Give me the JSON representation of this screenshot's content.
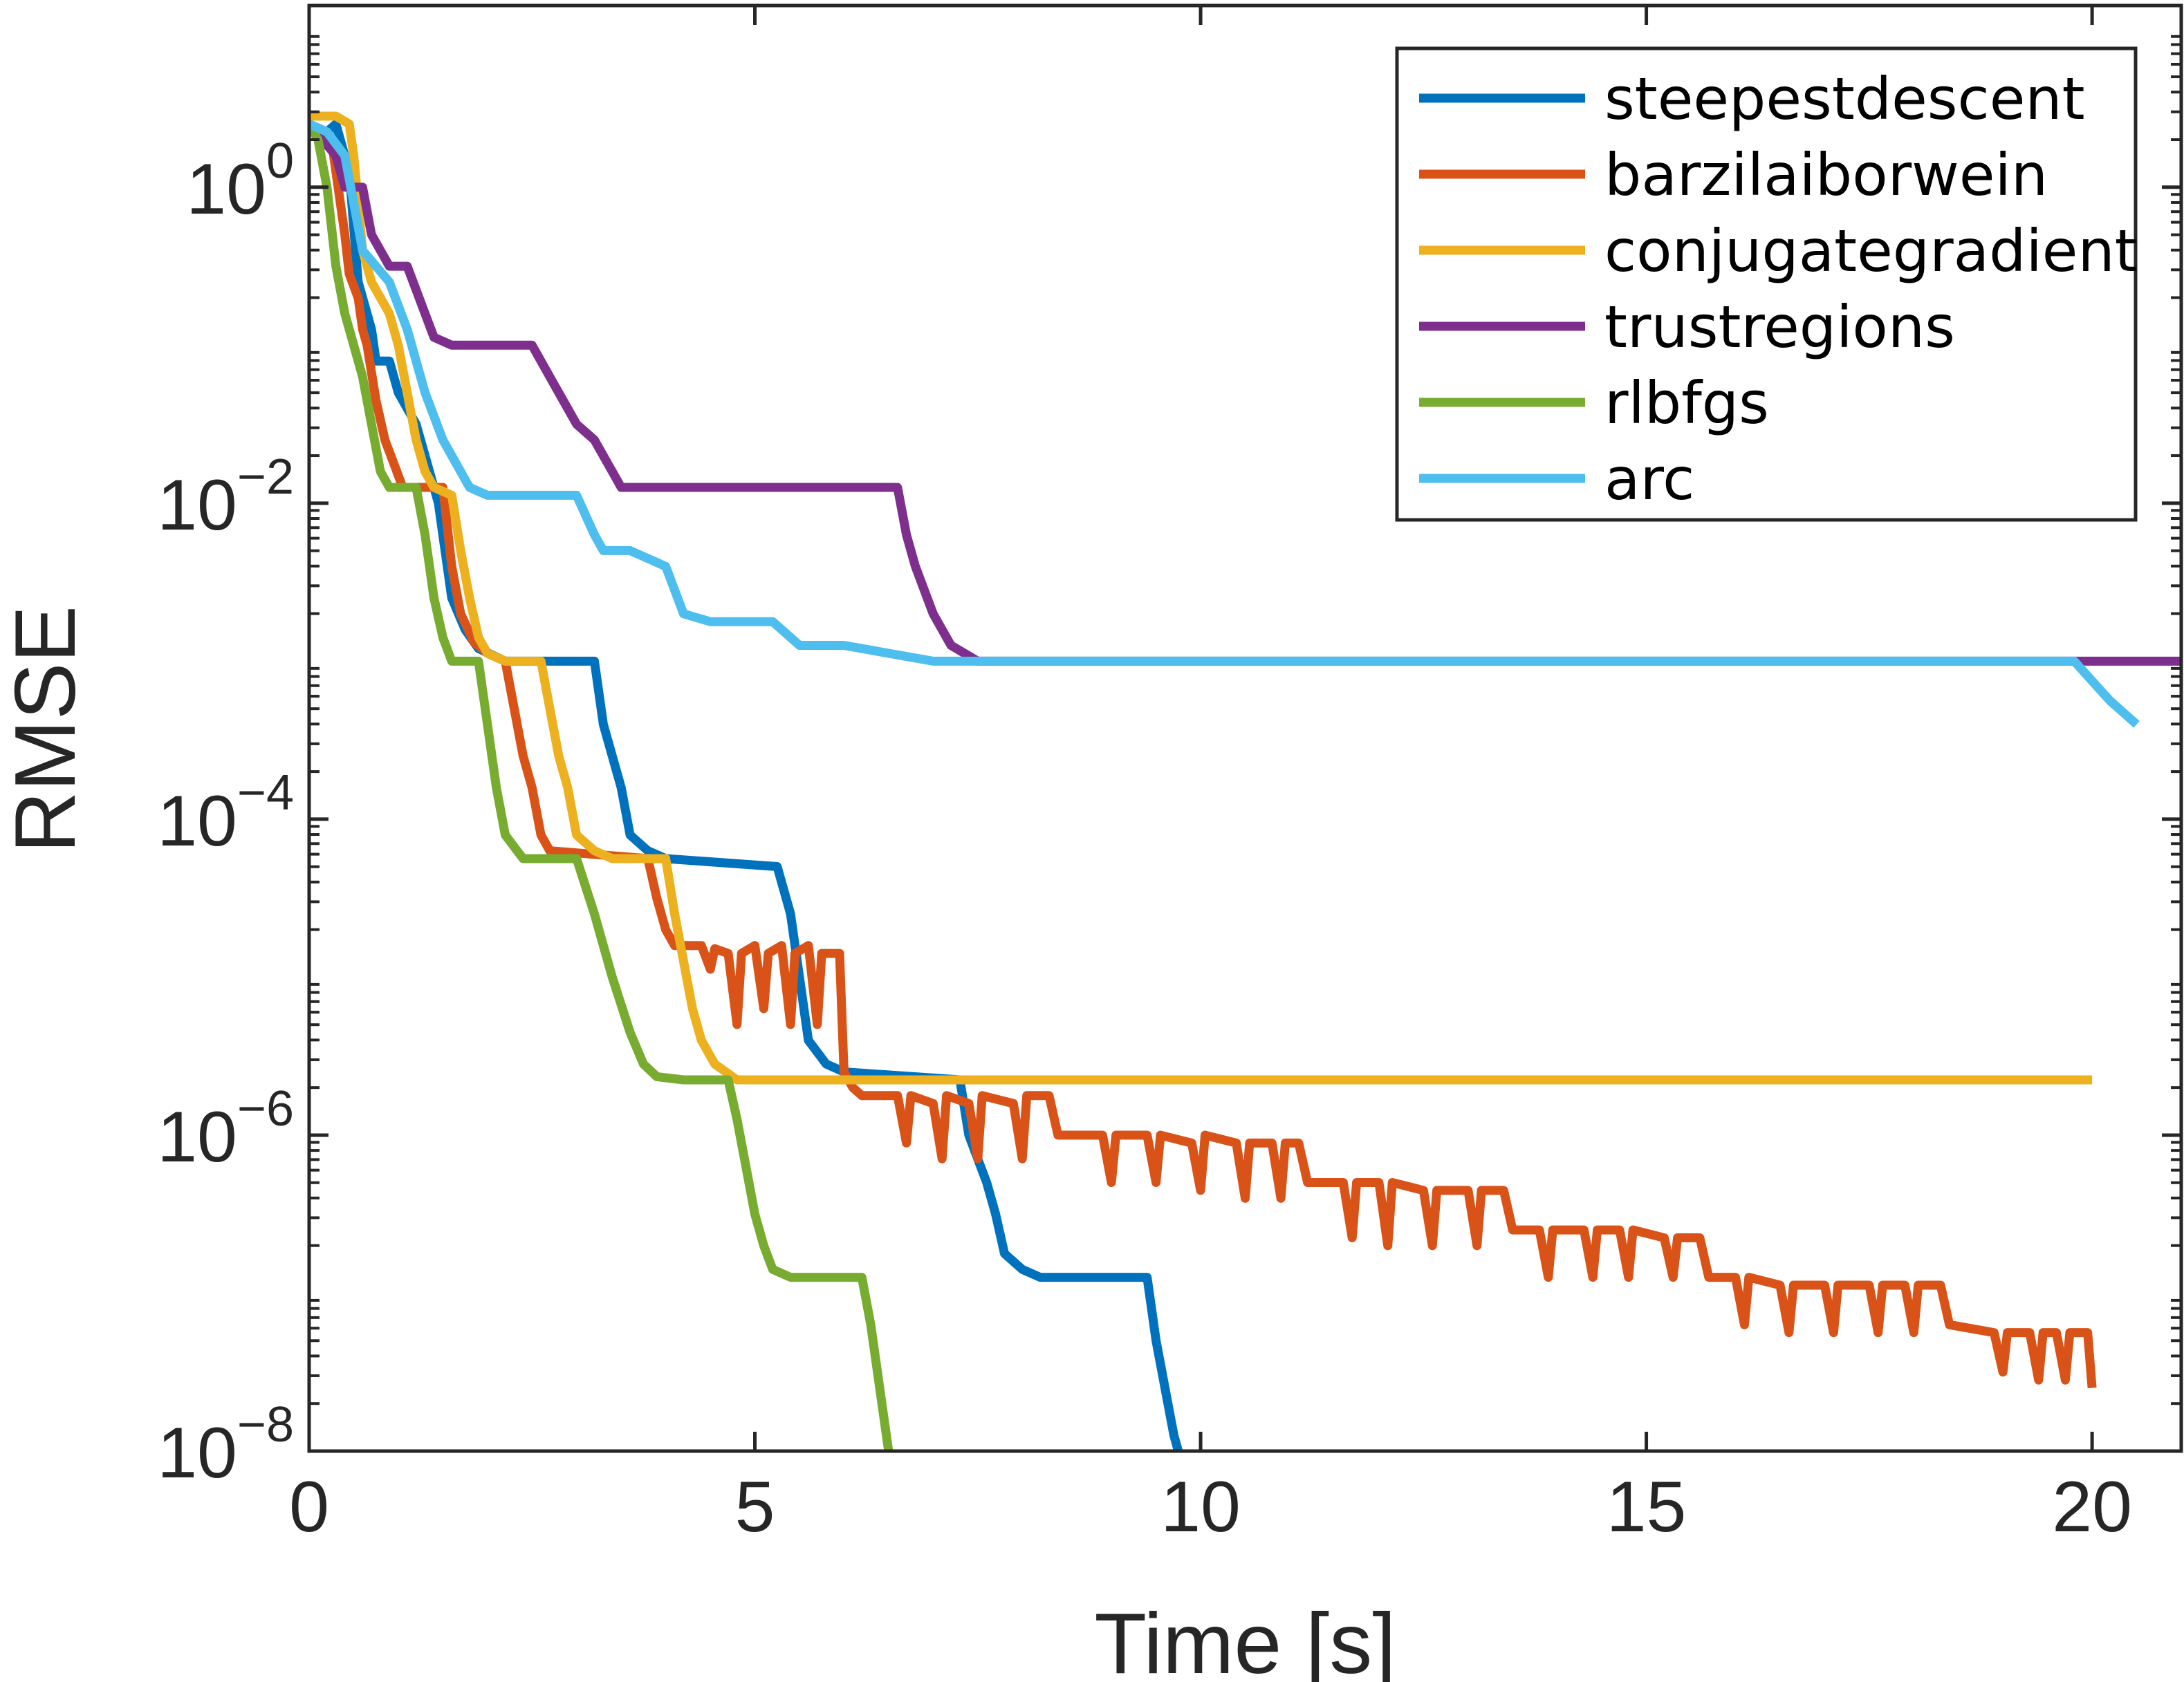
{
  "chart_data": {
    "type": "line",
    "title": "",
    "xlabel": "Time [s]",
    "ylabel": "RMSE",
    "xlim": [
      0,
      21
    ],
    "ylim_exponents": [
      -8,
      1.15
    ],
    "yscale": "log",
    "grid": false,
    "legend_position": "top-right",
    "box": true,
    "x_ticks": [
      {
        "value": 0,
        "label": "0"
      },
      {
        "value": 5,
        "label": "5"
      },
      {
        "value": 10,
        "label": "10"
      },
      {
        "value": 15,
        "label": "15"
      },
      {
        "value": 20,
        "label": "20"
      }
    ],
    "y_ticks": [
      {
        "exponent": 0,
        "base": "10",
        "exp_label": "0"
      },
      {
        "exponent": -2,
        "base": "10",
        "exp_label": "−2"
      },
      {
        "exponent": -4,
        "base": "10",
        "exp_label": "−4"
      },
      {
        "exponent": -6,
        "base": "10",
        "exp_label": "−6"
      },
      {
        "exponent": -8,
        "base": "10",
        "exp_label": "−8"
      }
    ],
    "series": [
      {
        "name": "steepestdescent",
        "color": "#0072BD",
        "points": [
          [
            0,
            0.4
          ],
          [
            0.2,
            0.35
          ],
          [
            0.3,
            0.4
          ],
          [
            0.45,
            0.1
          ],
          [
            0.55,
            -0.6
          ],
          [
            0.7,
            -0.9
          ],
          [
            0.75,
            -1.1
          ],
          [
            0.9,
            -1.1
          ],
          [
            1.0,
            -1.3
          ],
          [
            1.2,
            -1.5
          ],
          [
            1.3,
            -1.7
          ],
          [
            1.45,
            -2.0
          ],
          [
            1.6,
            -2.6
          ],
          [
            1.75,
            -2.8
          ],
          [
            1.9,
            -2.92
          ],
          [
            2.2,
            -3.0
          ],
          [
            3.2,
            -3.0
          ],
          [
            3.3,
            -3.4
          ],
          [
            3.4,
            -3.6
          ],
          [
            3.5,
            -3.8
          ],
          [
            3.6,
            -4.1
          ],
          [
            3.8,
            -4.2
          ],
          [
            4.0,
            -4.25
          ],
          [
            5.25,
            -4.3
          ],
          [
            5.4,
            -4.6
          ],
          [
            5.5,
            -5.0
          ],
          [
            5.6,
            -5.4
          ],
          [
            5.8,
            -5.55
          ],
          [
            6.0,
            -5.6
          ],
          [
            7.3,
            -5.65
          ],
          [
            7.4,
            -6.0
          ],
          [
            7.6,
            -6.3
          ],
          [
            7.7,
            -6.5
          ],
          [
            7.8,
            -6.75
          ],
          [
            8.0,
            -6.85
          ],
          [
            8.2,
            -6.9
          ],
          [
            9.4,
            -6.9
          ],
          [
            9.5,
            -7.3
          ],
          [
            9.6,
            -7.6
          ],
          [
            9.7,
            -7.9
          ],
          [
            9.75,
            -8.0
          ]
        ]
      },
      {
        "name": "barzilaiborwein",
        "color": "#D95319",
        "points": [
          [
            0,
            0.4
          ],
          [
            0.25,
            0.3
          ],
          [
            0.4,
            -0.3
          ],
          [
            0.45,
            -0.55
          ],
          [
            0.55,
            -0.7
          ],
          [
            0.6,
            -0.9
          ],
          [
            0.65,
            -1.0
          ],
          [
            0.75,
            -1.35
          ],
          [
            0.85,
            -1.6
          ],
          [
            0.95,
            -1.75
          ],
          [
            1.05,
            -1.9
          ],
          [
            1.5,
            -1.9
          ],
          [
            1.55,
            -2.15
          ],
          [
            1.6,
            -2.4
          ],
          [
            1.7,
            -2.7
          ],
          [
            1.85,
            -2.88
          ],
          [
            2.0,
            -2.95
          ],
          [
            2.2,
            -3.0
          ],
          [
            2.3,
            -3.3
          ],
          [
            2.4,
            -3.6
          ],
          [
            2.5,
            -3.8
          ],
          [
            2.6,
            -4.1
          ],
          [
            2.7,
            -4.2
          ],
          [
            3.8,
            -4.25
          ],
          [
            3.9,
            -4.5
          ],
          [
            4.0,
            -4.7
          ],
          [
            4.1,
            -4.8
          ],
          [
            4.4,
            -4.8
          ],
          [
            4.5,
            -4.95
          ],
          [
            4.55,
            -4.82
          ],
          [
            4.7,
            -4.85
          ],
          [
            4.8,
            -5.3
          ],
          [
            4.85,
            -4.85
          ],
          [
            5.0,
            -4.8
          ],
          [
            5.1,
            -5.2
          ],
          [
            5.15,
            -4.85
          ],
          [
            5.3,
            -4.8
          ],
          [
            5.4,
            -5.3
          ],
          [
            5.45,
            -4.85
          ],
          [
            5.6,
            -4.8
          ],
          [
            5.7,
            -5.3
          ],
          [
            5.75,
            -4.85
          ],
          [
            5.95,
            -4.85
          ],
          [
            6.0,
            -5.6
          ],
          [
            6.1,
            -5.7
          ],
          [
            6.2,
            -5.75
          ],
          [
            6.6,
            -5.75
          ],
          [
            6.7,
            -6.05
          ],
          [
            6.75,
            -5.75
          ],
          [
            7.0,
            -5.8
          ],
          [
            7.1,
            -6.15
          ],
          [
            7.15,
            -5.75
          ],
          [
            7.4,
            -5.8
          ],
          [
            7.5,
            -6.15
          ],
          [
            7.55,
            -5.75
          ],
          [
            7.9,
            -5.8
          ],
          [
            8.0,
            -6.15
          ],
          [
            8.05,
            -5.75
          ],
          [
            8.3,
            -5.75
          ],
          [
            8.4,
            -6.0
          ],
          [
            8.6,
            -6.0
          ],
          [
            8.9,
            -6.0
          ],
          [
            9.0,
            -6.3
          ],
          [
            9.05,
            -6.0
          ],
          [
            9.4,
            -6.0
          ],
          [
            9.5,
            -6.3
          ],
          [
            9.55,
            -6.0
          ],
          [
            9.9,
            -6.05
          ],
          [
            10.0,
            -6.35
          ],
          [
            10.05,
            -6.0
          ],
          [
            10.4,
            -6.05
          ],
          [
            10.5,
            -6.4
          ],
          [
            10.55,
            -6.05
          ],
          [
            10.8,
            -6.05
          ],
          [
            10.9,
            -6.4
          ],
          [
            10.95,
            -6.05
          ],
          [
            11.1,
            -6.05
          ],
          [
            11.2,
            -6.3
          ],
          [
            11.6,
            -6.3
          ],
          [
            11.7,
            -6.65
          ],
          [
            11.75,
            -6.3
          ],
          [
            12.0,
            -6.3
          ],
          [
            12.1,
            -6.7
          ],
          [
            12.15,
            -6.3
          ],
          [
            12.5,
            -6.35
          ],
          [
            12.6,
            -6.7
          ],
          [
            12.65,
            -6.35
          ],
          [
            13.0,
            -6.35
          ],
          [
            13.1,
            -6.7
          ],
          [
            13.15,
            -6.35
          ],
          [
            13.4,
            -6.35
          ],
          [
            13.5,
            -6.6
          ],
          [
            13.8,
            -6.6
          ],
          [
            13.9,
            -6.9
          ],
          [
            13.95,
            -6.6
          ],
          [
            14.3,
            -6.6
          ],
          [
            14.4,
            -6.9
          ],
          [
            14.45,
            -6.6
          ],
          [
            14.7,
            -6.6
          ],
          [
            14.8,
            -6.9
          ],
          [
            14.85,
            -6.6
          ],
          [
            15.2,
            -6.65
          ],
          [
            15.3,
            -6.9
          ],
          [
            15.35,
            -6.65
          ],
          [
            15.6,
            -6.65
          ],
          [
            15.7,
            -6.9
          ],
          [
            16.0,
            -6.9
          ],
          [
            16.1,
            -7.2
          ],
          [
            16.15,
            -6.9
          ],
          [
            16.5,
            -6.95
          ],
          [
            16.6,
            -7.25
          ],
          [
            16.65,
            -6.95
          ],
          [
            17.0,
            -6.95
          ],
          [
            17.1,
            -7.25
          ],
          [
            17.15,
            -6.95
          ],
          [
            17.5,
            -6.95
          ],
          [
            17.6,
            -7.25
          ],
          [
            17.65,
            -6.95
          ],
          [
            17.9,
            -6.95
          ],
          [
            18.0,
            -7.25
          ],
          [
            18.05,
            -6.95
          ],
          [
            18.3,
            -6.95
          ],
          [
            18.4,
            -7.2
          ],
          [
            18.9,
            -7.25
          ],
          [
            19.0,
            -7.5
          ],
          [
            19.05,
            -7.25
          ],
          [
            19.3,
            -7.25
          ],
          [
            19.4,
            -7.55
          ],
          [
            19.45,
            -7.25
          ],
          [
            19.6,
            -7.25
          ],
          [
            19.7,
            -7.55
          ],
          [
            19.75,
            -7.25
          ],
          [
            19.95,
            -7.25
          ],
          [
            20.0,
            -7.6
          ]
        ]
      },
      {
        "name": "conjugategradient",
        "color": "#EDB120",
        "points": [
          [
            0,
            0.45
          ],
          [
            0.3,
            0.45
          ],
          [
            0.45,
            0.4
          ],
          [
            0.5,
            0.2
          ],
          [
            0.6,
            -0.4
          ],
          [
            0.7,
            -0.6
          ],
          [
            0.8,
            -0.7
          ],
          [
            0.9,
            -0.8
          ],
          [
            1.0,
            -1.0
          ],
          [
            1.1,
            -1.3
          ],
          [
            1.2,
            -1.6
          ],
          [
            1.3,
            -1.8
          ],
          [
            1.4,
            -1.9
          ],
          [
            1.6,
            -1.95
          ],
          [
            1.7,
            -2.3
          ],
          [
            1.8,
            -2.6
          ],
          [
            1.9,
            -2.85
          ],
          [
            2.0,
            -2.95
          ],
          [
            2.2,
            -3.0
          ],
          [
            2.6,
            -3.0
          ],
          [
            2.7,
            -3.3
          ],
          [
            2.8,
            -3.6
          ],
          [
            2.9,
            -3.8
          ],
          [
            3.0,
            -4.1
          ],
          [
            3.2,
            -4.2
          ],
          [
            3.4,
            -4.25
          ],
          [
            4.0,
            -4.25
          ],
          [
            4.1,
            -4.6
          ],
          [
            4.2,
            -4.9
          ],
          [
            4.3,
            -5.2
          ],
          [
            4.4,
            -5.4
          ],
          [
            4.55,
            -5.55
          ],
          [
            4.8,
            -5.65
          ],
          [
            20.0,
            -5.65
          ]
        ]
      },
      {
        "name": "trustregions",
        "color": "#7E2F8E",
        "points": [
          [
            0,
            0.4
          ],
          [
            0.3,
            0.2
          ],
          [
            0.4,
            0.0
          ],
          [
            0.6,
            0.0
          ],
          [
            0.7,
            -0.3
          ],
          [
            0.9,
            -0.5
          ],
          [
            1.1,
            -0.5
          ],
          [
            1.2,
            -0.65
          ],
          [
            1.4,
            -0.95
          ],
          [
            1.6,
            -1.0
          ],
          [
            2.5,
            -1.0
          ],
          [
            2.7,
            -1.2
          ],
          [
            2.8,
            -1.3
          ],
          [
            3.0,
            -1.5
          ],
          [
            3.2,
            -1.6
          ],
          [
            3.4,
            -1.8
          ],
          [
            3.5,
            -1.9
          ],
          [
            3.7,
            -1.9
          ],
          [
            6.6,
            -1.9
          ],
          [
            6.7,
            -2.2
          ],
          [
            6.8,
            -2.4
          ],
          [
            7.0,
            -2.7
          ],
          [
            7.2,
            -2.9
          ],
          [
            7.5,
            -3.0
          ],
          [
            21.0,
            -3.0
          ]
        ]
      },
      {
        "name": "rlbfgs",
        "color": "#77AC30",
        "points": [
          [
            0,
            0.4
          ],
          [
            0.1,
            0.3
          ],
          [
            0.2,
            0.0
          ],
          [
            0.3,
            -0.5
          ],
          [
            0.4,
            -0.8
          ],
          [
            0.5,
            -1.0
          ],
          [
            0.55,
            -1.1
          ],
          [
            0.6,
            -1.2
          ],
          [
            0.7,
            -1.5
          ],
          [
            0.8,
            -1.8
          ],
          [
            0.9,
            -1.9
          ],
          [
            1.2,
            -1.9
          ],
          [
            1.3,
            -2.2
          ],
          [
            1.4,
            -2.6
          ],
          [
            1.5,
            -2.85
          ],
          [
            1.6,
            -3.0
          ],
          [
            1.9,
            -3.0
          ],
          [
            2.0,
            -3.4
          ],
          [
            2.1,
            -3.8
          ],
          [
            2.2,
            -4.1
          ],
          [
            2.4,
            -4.25
          ],
          [
            3.0,
            -4.25
          ],
          [
            3.2,
            -4.6
          ],
          [
            3.4,
            -5.0
          ],
          [
            3.6,
            -5.35
          ],
          [
            3.75,
            -5.55
          ],
          [
            3.9,
            -5.63
          ],
          [
            4.2,
            -5.65
          ],
          [
            4.7,
            -5.65
          ],
          [
            4.8,
            -5.9
          ],
          [
            5.0,
            -6.5
          ],
          [
            5.1,
            -6.7
          ],
          [
            5.2,
            -6.85
          ],
          [
            5.4,
            -6.9
          ],
          [
            6.2,
            -6.9
          ],
          [
            6.3,
            -7.2
          ],
          [
            6.4,
            -7.6
          ],
          [
            6.5,
            -8.0
          ]
        ]
      },
      {
        "name": "arc",
        "color": "#4DBEEE",
        "points": [
          [
            0,
            0.4
          ],
          [
            0.2,
            0.35
          ],
          [
            0.4,
            0.2
          ],
          [
            0.5,
            -0.1
          ],
          [
            0.6,
            -0.4
          ],
          [
            0.9,
            -0.6
          ],
          [
            1.1,
            -0.9
          ],
          [
            1.3,
            -1.3
          ],
          [
            1.5,
            -1.6
          ],
          [
            1.8,
            -1.9
          ],
          [
            2.0,
            -1.95
          ],
          [
            3.0,
            -1.95
          ],
          [
            3.2,
            -2.2
          ],
          [
            3.3,
            -2.3
          ],
          [
            3.6,
            -2.3
          ],
          [
            3.8,
            -2.35
          ],
          [
            4.0,
            -2.4
          ],
          [
            4.2,
            -2.7
          ],
          [
            4.5,
            -2.75
          ],
          [
            5.2,
            -2.75
          ],
          [
            5.5,
            -2.9
          ],
          [
            6.0,
            -2.9
          ],
          [
            6.5,
            -2.95
          ],
          [
            7.0,
            -3.0
          ],
          [
            19.8,
            -3.0
          ],
          [
            20.2,
            -3.25
          ],
          [
            20.5,
            -3.4
          ]
        ]
      }
    ]
  }
}
